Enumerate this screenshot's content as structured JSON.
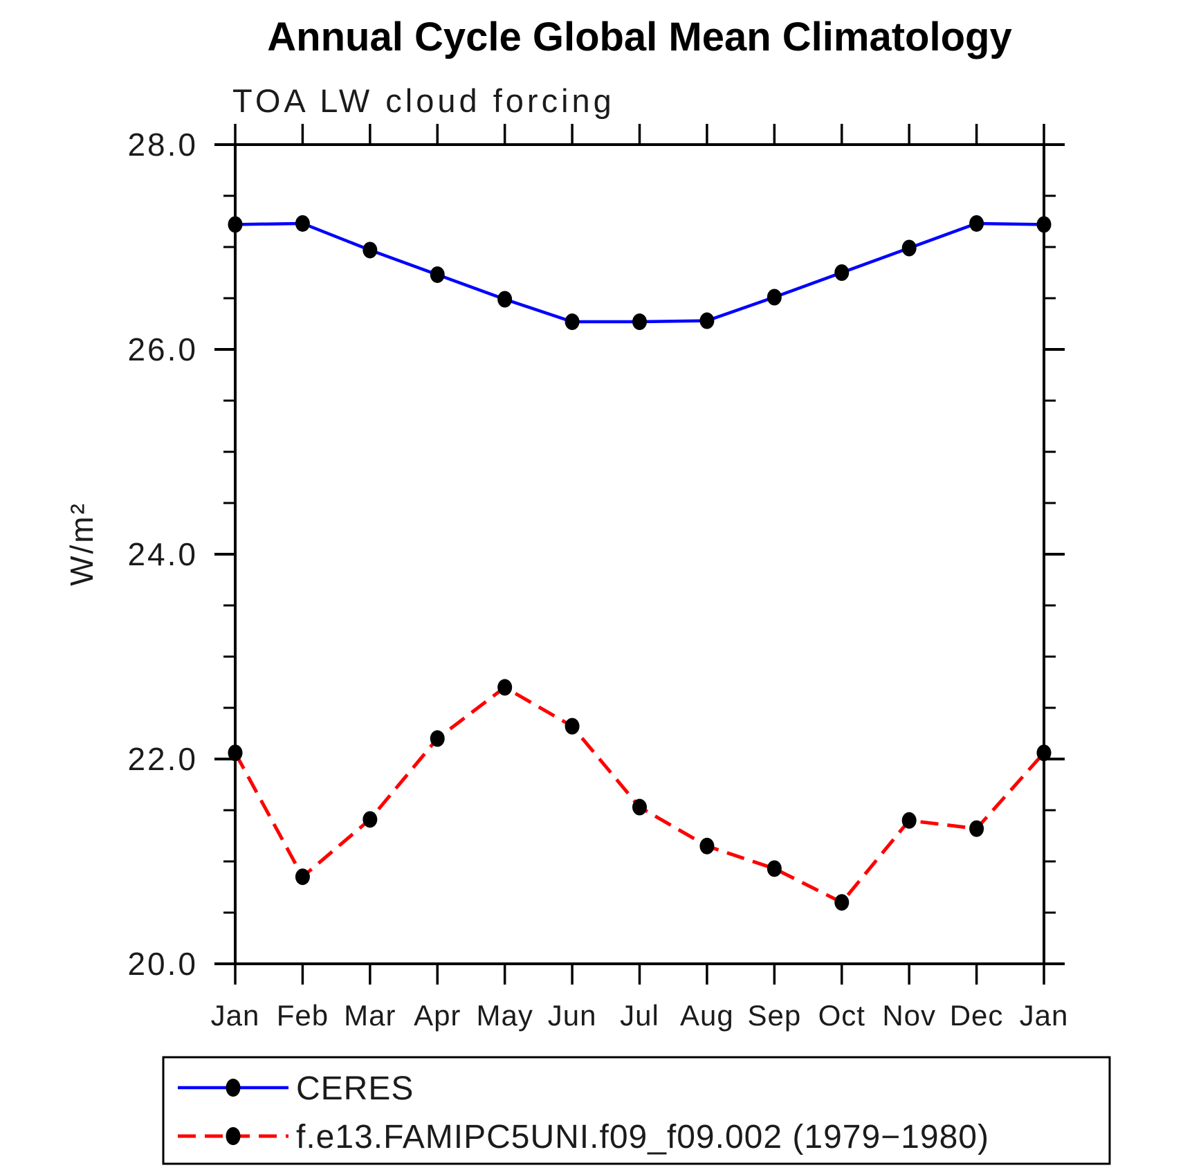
{
  "title": "Annual Cycle Global Mean Climatology",
  "subtitle": "TOA LW cloud forcing",
  "y_axis_title": "W/m²",
  "chart_data": {
    "type": "line",
    "title": "Annual Cycle Global Mean Climatology",
    "subtitle": "TOA LW cloud forcing",
    "xlabel": "",
    "ylabel": "W/m²",
    "categories": [
      "Jan",
      "Feb",
      "Mar",
      "Apr",
      "May",
      "Jun",
      "Jul",
      "Aug",
      "Sep",
      "Oct",
      "Nov",
      "Dec",
      "Jan"
    ],
    "ylim": [
      20.0,
      28.0
    ],
    "y_major_ticks": [
      20.0,
      22.0,
      24.0,
      26.0,
      28.0
    ],
    "y_major_tick_labels": [
      "20.0",
      "22.0",
      "24.0",
      "26.0",
      "28.0"
    ],
    "y_minor_step": 0.5,
    "grid": false,
    "legend_position": "bottom-left",
    "frame_color": "#000000",
    "marker_color": "#000000",
    "series": [
      {
        "name": "CERES",
        "color": "#0000ff",
        "line_style": "solid",
        "marker": "filled-circle",
        "values": [
          27.22,
          27.23,
          26.97,
          26.73,
          26.49,
          26.27,
          26.27,
          26.28,
          26.51,
          26.75,
          26.99,
          27.23,
          27.22
        ]
      },
      {
        "name": "f.e13.FAMIPC5UNI.f09_f09.002 (1979−1980)",
        "color": "#ff0000",
        "line_style": "dashed",
        "marker": "filled-circle",
        "values": [
          22.06,
          20.85,
          21.41,
          22.2,
          22.7,
          22.32,
          21.53,
          21.15,
          20.93,
          20.6,
          21.4,
          21.32,
          22.06
        ]
      }
    ]
  }
}
